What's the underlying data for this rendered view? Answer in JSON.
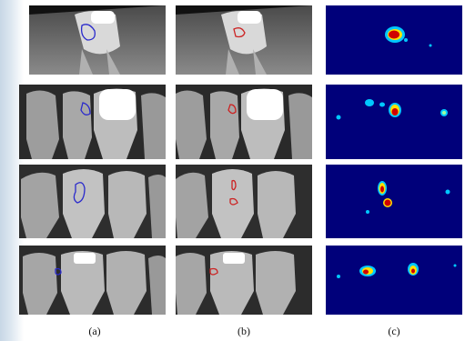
{
  "figure": {
    "column_labels": [
      "(a)",
      "(b)",
      "(c)"
    ],
    "rows": [
      {
        "row": 1,
        "annotation_a_color": "#2a2acc",
        "annotation_b_color": "#cc2222"
      },
      {
        "row": 2,
        "annotation_a_color": "#2a2acc",
        "annotation_b_color": "#cc2222"
      },
      {
        "row": 3,
        "annotation_a_color": "#2a2acc",
        "annotation_b_color": "#cc2222"
      },
      {
        "row": 4,
        "annotation_a_color": "#2a2acc",
        "annotation_b_color": "#cc2222"
      }
    ],
    "heatmap_colors": {
      "background": "#00007a",
      "low": "#00c8ff",
      "mid": "#ffe000",
      "high": "#d00000"
    }
  }
}
